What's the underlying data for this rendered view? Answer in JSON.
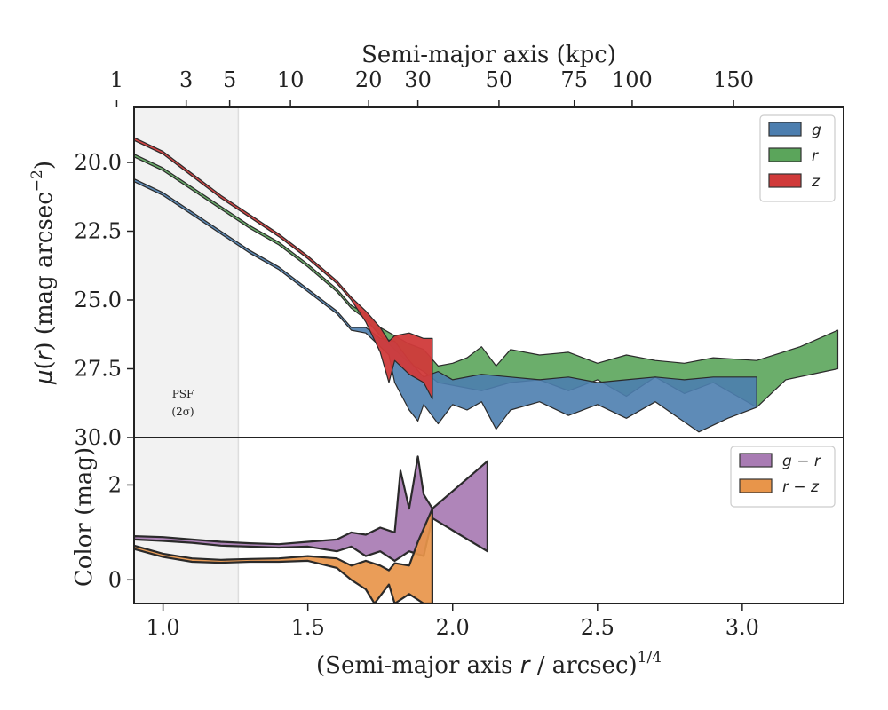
{
  "chart_data": [
    {
      "type": "area",
      "panel": "surface-brightness-profile",
      "xlabel": "(Semi-major axis r / arcsec)^1/4",
      "ylabel": "μ(r) (mag arcsec⁻²)",
      "top_axis_label": "Semi-major axis (kpc)",
      "top_axis_ticks": [
        1,
        3,
        5,
        10,
        20,
        30,
        50,
        75,
        100,
        150
      ],
      "top_axis_tick_x": [
        0.84,
        1.08,
        1.23,
        1.44,
        1.71,
        1.88,
        2.16,
        2.42,
        2.62,
        2.97
      ],
      "xlim": [
        0.9,
        3.35
      ],
      "ylim": [
        30.0,
        18.0
      ],
      "yticks": [
        20.0,
        22.5,
        25.0,
        27.5,
        30.0
      ],
      "ytick_labels": [
        "20.0",
        "22.5",
        "25.0",
        "27.5",
        "30.0"
      ],
      "legend_position": "upper right",
      "shaded_region": {
        "x0": 0.9,
        "x1": 1.26,
        "label_line1": "PSF",
        "label_line2": "(2σ)"
      },
      "series": [
        {
          "name": "g",
          "color": "#4C7EAF",
          "upper": [
            [
              0.9,
              20.6
            ],
            [
              1.0,
              21.1
            ],
            [
              1.1,
              21.8
            ],
            [
              1.2,
              22.5
            ],
            [
              1.3,
              23.2
            ],
            [
              1.4,
              23.8
            ],
            [
              1.5,
              24.6
            ],
            [
              1.6,
              25.4
            ],
            [
              1.65,
              26.0
            ],
            [
              1.7,
              26.0
            ],
            [
              1.75,
              26.4
            ],
            [
              1.8,
              26.5
            ],
            [
              1.85,
              27.2
            ],
            [
              1.9,
              27.8
            ],
            [
              1.95,
              27.6
            ],
            [
              2.0,
              27.9
            ],
            [
              2.1,
              27.7
            ],
            [
              2.2,
              27.8
            ],
            [
              2.3,
              27.9
            ],
            [
              2.4,
              27.8
            ],
            [
              2.5,
              28.0
            ],
            [
              2.6,
              27.9
            ],
            [
              2.7,
              27.8
            ],
            [
              2.8,
              27.9
            ],
            [
              2.9,
              27.8
            ],
            [
              3.05,
              27.8
            ]
          ],
          "lower": [
            [
              0.9,
              20.7
            ],
            [
              1.0,
              21.2
            ],
            [
              1.1,
              21.9
            ],
            [
              1.2,
              22.6
            ],
            [
              1.3,
              23.3
            ],
            [
              1.4,
              23.9
            ],
            [
              1.5,
              24.7
            ],
            [
              1.6,
              25.5
            ],
            [
              1.65,
              26.1
            ],
            [
              1.7,
              26.2
            ],
            [
              1.75,
              26.7
            ],
            [
              1.78,
              27.0
            ],
            [
              1.8,
              28.0
            ],
            [
              1.85,
              29.0
            ],
            [
              1.88,
              29.4
            ],
            [
              1.9,
              28.8
            ],
            [
              1.95,
              29.5
            ],
            [
              2.0,
              28.8
            ],
            [
              2.05,
              29.0
            ],
            [
              2.1,
              28.7
            ],
            [
              2.15,
              29.7
            ],
            [
              2.2,
              29.0
            ],
            [
              2.3,
              28.7
            ],
            [
              2.4,
              29.2
            ],
            [
              2.5,
              28.8
            ],
            [
              2.6,
              29.3
            ],
            [
              2.7,
              28.7
            ],
            [
              2.85,
              29.8
            ],
            [
              2.95,
              29.3
            ],
            [
              3.05,
              28.9
            ]
          ]
        },
        {
          "name": "r",
          "color": "#5BA55B",
          "upper": [
            [
              0.9,
              19.7
            ],
            [
              1.0,
              20.2
            ],
            [
              1.1,
              20.9
            ],
            [
              1.2,
              21.6
            ],
            [
              1.3,
              22.3
            ],
            [
              1.4,
              22.9
            ],
            [
              1.5,
              23.7
            ],
            [
              1.6,
              24.6
            ],
            [
              1.65,
              25.2
            ],
            [
              1.7,
              25.5
            ],
            [
              1.75,
              26.0
            ],
            [
              1.8,
              26.3
            ],
            [
              1.85,
              26.6
            ],
            [
              1.9,
              26.8
            ],
            [
              1.95,
              27.4
            ],
            [
              2.0,
              27.3
            ],
            [
              2.05,
              27.1
            ],
            [
              2.1,
              26.7
            ],
            [
              2.15,
              27.4
            ],
            [
              2.2,
              26.8
            ],
            [
              2.3,
              27.0
            ],
            [
              2.4,
              26.9
            ],
            [
              2.5,
              27.3
            ],
            [
              2.6,
              27.0
            ],
            [
              2.7,
              27.2
            ],
            [
              2.8,
              27.3
            ],
            [
              2.9,
              27.1
            ],
            [
              3.05,
              27.2
            ],
            [
              3.2,
              26.7
            ],
            [
              3.33,
              26.1
            ]
          ],
          "lower": [
            [
              0.9,
              19.8
            ],
            [
              1.0,
              20.3
            ],
            [
              1.1,
              21.0
            ],
            [
              1.2,
              21.7
            ],
            [
              1.3,
              22.4
            ],
            [
              1.4,
              23.0
            ],
            [
              1.5,
              23.8
            ],
            [
              1.6,
              24.7
            ],
            [
              1.65,
              25.3
            ],
            [
              1.7,
              25.7
            ],
            [
              1.75,
              26.3
            ],
            [
              1.8,
              26.8
            ],
            [
              1.85,
              27.3
            ],
            [
              1.9,
              27.6
            ],
            [
              1.95,
              28.0
            ],
            [
              2.0,
              28.1
            ],
            [
              2.1,
              28.3
            ],
            [
              2.2,
              28.0
            ],
            [
              2.3,
              27.9
            ],
            [
              2.4,
              28.3
            ],
            [
              2.5,
              27.9
            ],
            [
              2.6,
              28.5
            ],
            [
              2.7,
              27.8
            ],
            [
              2.8,
              28.4
            ],
            [
              2.9,
              28.0
            ],
            [
              3.05,
              28.9
            ],
            [
              3.15,
              27.9
            ],
            [
              3.33,
              27.5
            ]
          ]
        },
        {
          "name": "z",
          "color": "#D03A3A",
          "upper": [
            [
              0.9,
              19.1
            ],
            [
              1.0,
              19.6
            ],
            [
              1.1,
              20.4
            ],
            [
              1.2,
              21.2
            ],
            [
              1.3,
              21.9
            ],
            [
              1.4,
              22.6
            ],
            [
              1.5,
              23.4
            ],
            [
              1.6,
              24.3
            ],
            [
              1.65,
              24.9
            ],
            [
              1.7,
              25.4
            ],
            [
              1.75,
              26.0
            ],
            [
              1.78,
              26.5
            ],
            [
              1.8,
              26.3
            ],
            [
              1.85,
              26.2
            ],
            [
              1.9,
              26.4
            ],
            [
              1.93,
              26.4
            ]
          ],
          "lower": [
            [
              0.9,
              19.2
            ],
            [
              1.0,
              19.7
            ],
            [
              1.1,
              20.5
            ],
            [
              1.2,
              21.3
            ],
            [
              1.3,
              22.0
            ],
            [
              1.4,
              22.7
            ],
            [
              1.5,
              23.5
            ],
            [
              1.6,
              24.4
            ],
            [
              1.65,
              25.0
            ],
            [
              1.7,
              25.8
            ],
            [
              1.75,
              26.9
            ],
            [
              1.78,
              28.0
            ],
            [
              1.8,
              27.2
            ],
            [
              1.85,
              27.7
            ],
            [
              1.9,
              28.0
            ],
            [
              1.93,
              28.6
            ]
          ]
        }
      ]
    },
    {
      "type": "area",
      "panel": "color-profile",
      "xlabel": "(Semi-major axis r / arcsec)^1/4",
      "ylabel": "Color (mag)",
      "xlim": [
        0.9,
        3.35
      ],
      "ylim": [
        -0.5,
        3.0
      ],
      "yticks": [
        0,
        2
      ],
      "ytick_labels": [
        "0",
        "2"
      ],
      "xticks": [
        1.0,
        1.5,
        2.0,
        2.5,
        3.0
      ],
      "xtick_labels": [
        "1.0",
        "1.5",
        "2.0",
        "2.5",
        "3.0"
      ],
      "legend_position": "upper right",
      "shaded_region": {
        "x0": 0.9,
        "x1": 1.26
      },
      "series": [
        {
          "name": "g − r",
          "color": "#A87BB3",
          "upper": [
            [
              0.9,
              0.92
            ],
            [
              1.0,
              0.9
            ],
            [
              1.1,
              0.85
            ],
            [
              1.2,
              0.8
            ],
            [
              1.3,
              0.77
            ],
            [
              1.4,
              0.75
            ],
            [
              1.5,
              0.8
            ],
            [
              1.6,
              0.85
            ],
            [
              1.65,
              1.0
            ],
            [
              1.7,
              0.95
            ],
            [
              1.75,
              1.1
            ],
            [
              1.8,
              1.0
            ],
            [
              1.82,
              2.3
            ],
            [
              1.85,
              1.5
            ],
            [
              1.88,
              2.6
            ],
            [
              1.9,
              1.8
            ],
            [
              1.93,
              1.5
            ],
            [
              2.12,
              2.5
            ]
          ],
          "lower": [
            [
              0.9,
              0.85
            ],
            [
              1.0,
              0.82
            ],
            [
              1.1,
              0.78
            ],
            [
              1.2,
              0.72
            ],
            [
              1.3,
              0.7
            ],
            [
              1.4,
              0.68
            ],
            [
              1.5,
              0.7
            ],
            [
              1.6,
              0.6
            ],
            [
              1.65,
              0.7
            ],
            [
              1.7,
              0.5
            ],
            [
              1.75,
              0.6
            ],
            [
              1.8,
              0.4
            ],
            [
              1.85,
              0.6
            ],
            [
              1.9,
              0.5
            ],
            [
              1.93,
              1.3
            ],
            [
              2.12,
              0.6
            ]
          ]
        },
        {
          "name": "r − z",
          "color": "#E8954A",
          "upper": [
            [
              0.9,
              0.72
            ],
            [
              1.0,
              0.55
            ],
            [
              1.1,
              0.45
            ],
            [
              1.2,
              0.42
            ],
            [
              1.3,
              0.44
            ],
            [
              1.4,
              0.45
            ],
            [
              1.5,
              0.5
            ],
            [
              1.6,
              0.45
            ],
            [
              1.65,
              0.3
            ],
            [
              1.7,
              0.4
            ],
            [
              1.75,
              0.3
            ],
            [
              1.78,
              0.2
            ],
            [
              1.8,
              0.35
            ],
            [
              1.85,
              0.3
            ],
            [
              1.88,
              0.8
            ],
            [
              1.93,
              1.5
            ]
          ],
          "lower": [
            [
              0.9,
              0.65
            ],
            [
              1.0,
              0.48
            ],
            [
              1.1,
              0.38
            ],
            [
              1.2,
              0.36
            ],
            [
              1.3,
              0.38
            ],
            [
              1.4,
              0.38
            ],
            [
              1.5,
              0.4
            ],
            [
              1.6,
              0.25
            ],
            [
              1.65,
              0.0
            ],
            [
              1.7,
              -0.2
            ],
            [
              1.73,
              -0.5
            ],
            [
              1.78,
              -0.1
            ],
            [
              1.8,
              -0.5
            ],
            [
              1.85,
              -0.3
            ],
            [
              1.9,
              -0.5
            ],
            [
              1.93,
              -0.5
            ]
          ]
        }
      ]
    }
  ]
}
